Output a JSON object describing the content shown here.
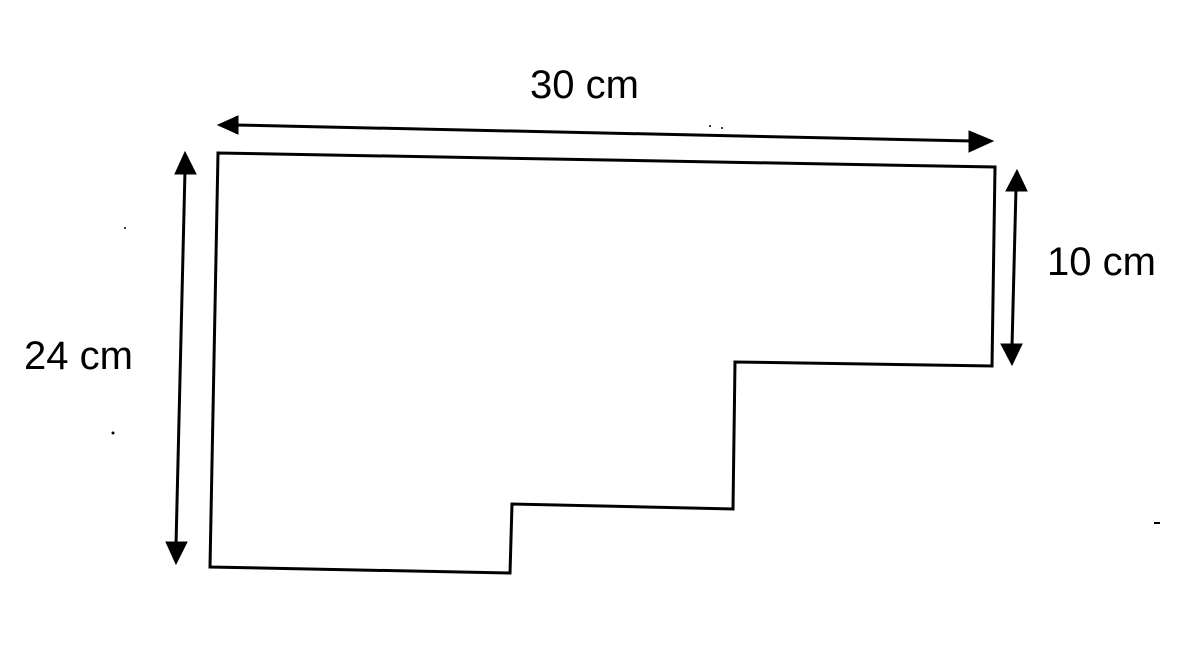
{
  "labels": {
    "top_width": "30 cm",
    "right_height": "10 cm",
    "left_height": "24 cm"
  },
  "colors": {
    "ink": "#000000",
    "background": "#ffffff"
  }
}
